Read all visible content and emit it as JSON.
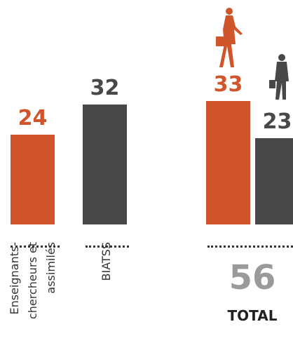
{
  "chart_data": {
    "type": "bar",
    "categories": [
      "Enseignants-chercheurs et assimilés",
      "BIATSS",
      null,
      null
    ],
    "values": [
      24,
      32,
      33,
      23
    ],
    "colors": [
      "#d0552a",
      "#484848",
      "#d0552a",
      "#484848"
    ],
    "ylim": [
      0,
      60
    ],
    "total": {
      "value": 56,
      "label": "TOTAL"
    }
  }
}
